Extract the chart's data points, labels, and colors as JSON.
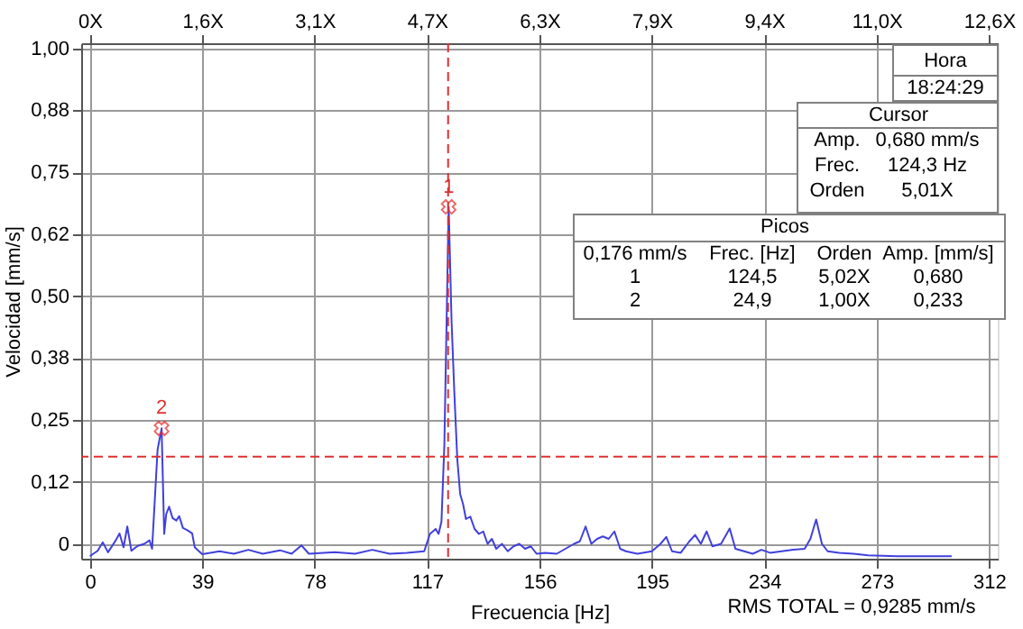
{
  "chart_data": {
    "type": "line",
    "xlabel": "Frecuencia [Hz]",
    "ylabel": "Velocidad [mm/s]",
    "xlim": [
      -3,
      315
    ],
    "xticks": [
      0,
      39,
      78,
      117,
      156,
      195,
      234,
      273,
      312
    ],
    "x2lim": [
      -0.121,
      12.702
    ],
    "x2ticks": [
      {
        "value": 0,
        "label": "0X"
      },
      {
        "value": 1.573,
        "label": "1,6X"
      },
      {
        "value": 3.145,
        "label": "3,1X"
      },
      {
        "value": 4.718,
        "label": "4,7X"
      },
      {
        "value": 6.29,
        "label": "6,3X"
      },
      {
        "value": 7.863,
        "label": "7,9X"
      },
      {
        "value": 9.435,
        "label": "9,4X"
      },
      {
        "value": 11.008,
        "label": "11,0X"
      },
      {
        "value": 12.581,
        "label": "12,6X"
      }
    ],
    "ylim": [
      -0.03,
      1.01
    ],
    "yticks": [
      0,
      {
        "value": 0.125,
        "label": "0,12"
      },
      {
        "value": 0.25,
        "label": "0,25"
      },
      {
        "value": 0.375,
        "label": "0,38"
      },
      {
        "value": 0.5,
        "label": "0,50"
      },
      {
        "value": 0.625,
        "label": "0,62"
      },
      {
        "value": 0.75,
        "label": "0,75"
      },
      {
        "value": 0.875,
        "label": "0,88"
      },
      {
        "value": 1.0,
        "label": "1,00"
      }
    ],
    "grid": true,
    "series": [
      {
        "color": "#4040dd",
        "x": [
          0,
          2.7,
          4.5,
          6.3,
          9.0,
          10.3,
          11.7,
          13.0,
          14.4,
          16.6,
          18.9,
          20.7,
          21.6,
          23.5,
          24.9,
          25.8,
          26.5,
          27.5,
          28.7,
          30,
          31,
          32.3,
          33.7,
          35.5,
          36.4,
          37.7,
          39,
          45,
          50,
          55,
          60,
          66,
          70,
          73.4,
          76,
          85,
          92,
          98,
          104,
          110,
          116,
          118,
          120,
          121,
          122,
          123,
          124.5,
          125.5,
          126.5,
          127.5,
          128.5,
          129.5,
          130.5,
          132,
          133.5,
          135,
          136.5,
          138,
          139.5,
          141,
          143,
          145,
          147,
          149,
          151,
          153,
          155,
          158,
          162,
          165,
          168,
          170,
          172,
          174,
          176,
          178,
          180,
          182,
          184,
          186,
          190,
          195,
          198,
          200,
          202,
          205,
          208,
          210,
          212,
          214,
          216,
          219,
          222,
          224,
          227,
          230,
          233,
          236,
          240,
          244,
          248,
          250,
          252,
          254,
          256,
          260,
          265,
          270,
          280,
          290,
          299
        ],
        "values": [
          -0.025,
          -0.014,
          0.003,
          -0.017,
          0.007,
          0.021,
          -0.007,
          0.035,
          -0.014,
          -0.004,
          0.0,
          0.007,
          -0.01,
          0.19,
          0.233,
          0.02,
          0.06,
          0.075,
          0.052,
          0.047,
          0.056,
          0.032,
          0.028,
          0.021,
          -0.007,
          -0.014,
          -0.021,
          -0.015,
          -0.02,
          -0.012,
          -0.02,
          -0.013,
          -0.02,
          -0.003,
          -0.02,
          -0.017,
          -0.02,
          -0.012,
          -0.02,
          -0.018,
          -0.015,
          0.02,
          0.03,
          0.02,
          0.045,
          0.2,
          0.68,
          0.45,
          0.3,
          0.17,
          0.1,
          0.08,
          0.05,
          0.055,
          0.03,
          0.02,
          0.025,
          0.0,
          0.01,
          -0.01,
          0.0,
          -0.015,
          -0.005,
          0.0,
          -0.01,
          -0.005,
          -0.02,
          -0.018,
          -0.02,
          -0.01,
          0.0,
          0.005,
          0.035,
          0.0,
          0.01,
          0.015,
          0.01,
          0.025,
          -0.01,
          -0.015,
          -0.02,
          -0.015,
          0.0,
          0.014,
          -0.015,
          -0.018,
          0.005,
          0.018,
          0.0,
          0.025,
          -0.005,
          0.0,
          0.031,
          -0.01,
          -0.015,
          -0.02,
          -0.012,
          -0.018,
          -0.015,
          -0.012,
          -0.01,
          0.01,
          0.049,
          0.0,
          -0.015,
          -0.018,
          -0.02,
          -0.023,
          -0.025,
          -0.025,
          -0.025
        ]
      },
      {
        "type": "scatter",
        "marker": "cross",
        "color": "#e03030",
        "x": [
          124.5,
          24.9
        ],
        "values": [
          0.68,
          0.233
        ]
      }
    ],
    "ref_lines": [
      {
        "axis": "x",
        "value": 124.3,
        "color": "#e03030",
        "line_style": "dashed"
      },
      {
        "axis": "y",
        "value": 0.176,
        "color": "#e03030",
        "line_style": "dashed"
      }
    ],
    "annotations": [
      {
        "text": "1",
        "x": 124.5,
        "y": 0.68
      },
      {
        "text": "2",
        "x": 24.9,
        "y": 0.233
      },
      "Hora",
      "18:24:29",
      "Cursor",
      "Amp.",
      "0,680 mm/s",
      "Frec.",
      "124,3 Hz",
      "Orden",
      "5,01X",
      "Picos",
      "0,176 mm/s",
      "Frec. [Hz]",
      "Orden",
      "Amp. [mm/s]",
      "1",
      "124,5",
      "5,02X",
      "0,680",
      "2",
      "24,9",
      "1,00X",
      "0,233",
      "RMS TOTAL = 0,9285 mm/s"
    ]
  }
}
